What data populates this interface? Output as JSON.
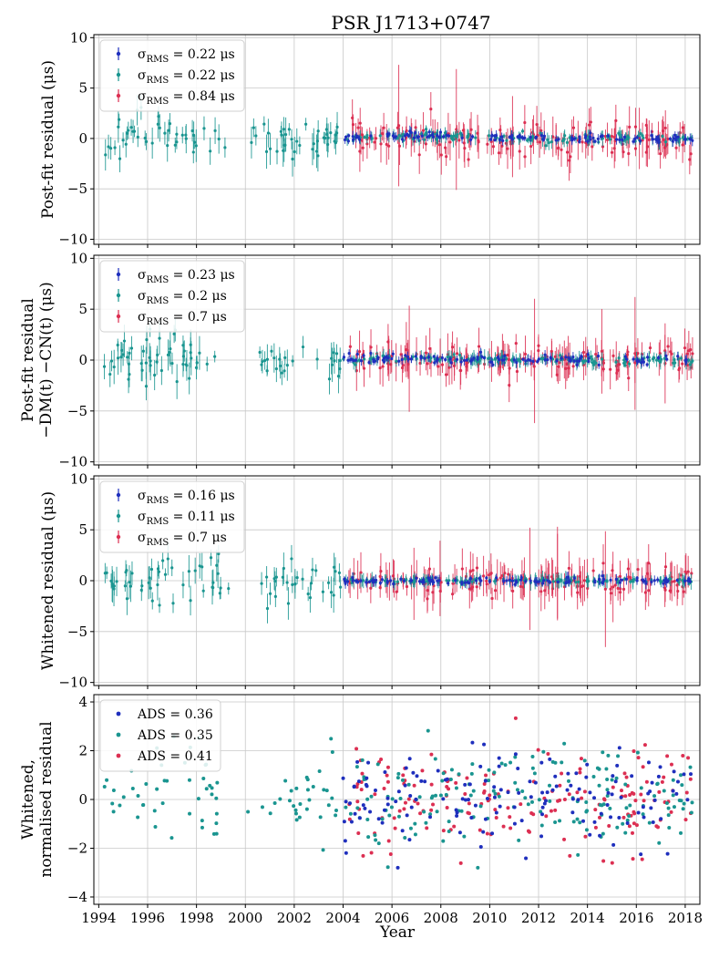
{
  "figure": {
    "title": "PSR J1713+0747",
    "xlabel": "Year"
  },
  "colors": {
    "blue": "#1f2fbd",
    "teal": "#1a9590",
    "red": "#dc2f52"
  },
  "chart_data": [
    {
      "type": "scatter",
      "ylabel_lines": [
        "Post-fit residual (μs)"
      ],
      "xlim": [
        1993.8,
        2018.6
      ],
      "ylim": [
        -10.5,
        10.3
      ],
      "yticks": [
        -10,
        -5,
        0,
        5,
        10
      ],
      "xticks": [
        1994,
        1996,
        1998,
        2000,
        2002,
        2004,
        2006,
        2008,
        2010,
        2012,
        2014,
        2016,
        2018
      ],
      "grid": true,
      "legend_position": "top-left",
      "errorbars": true,
      "series": [
        {
          "name": "σRMS = 0.22 μs",
          "legend_main": "σ",
          "legend_sub": "RMS",
          "legend_rest": " = 0.22 μs",
          "color": "#1f2fbd",
          "spread": 0.22,
          "err": 0.35,
          "x_start": 2004.0,
          "x_end": 2018.3,
          "points": 120,
          "wave": 0.25
        },
        {
          "name": "σRMS = 0.22 μs",
          "legend_main": "σ",
          "legend_sub": "RMS",
          "legend_rest": " = 0.22 μs",
          "color": "#1a9590",
          "spread": 0.22,
          "err": 0.5,
          "x_start": 2004.0,
          "x_end": 2018.3,
          "points": 140,
          "wave": 0.25
        },
        {
          "name": "σRMS = 0.84 μs",
          "legend_main": "σ",
          "legend_sub": "RMS",
          "legend_rest": " = 0.84 μs",
          "color": "#dc2f52",
          "spread": 0.84,
          "err": 1.3,
          "x_start": 2004.2,
          "x_end": 2018.3,
          "points": 150,
          "wave": 0.0
        }
      ],
      "early": {
        "color": "#1a9590",
        "x_start": 1994.2,
        "x_end": 2003.9,
        "points": 95,
        "spread": 0.9,
        "err": 1.1
      }
    },
    {
      "type": "scatter",
      "ylabel_lines": [
        "Post-fit residual",
        "−DM(t) −CN(t) (μs)"
      ],
      "xlim": [
        1993.8,
        2018.6
      ],
      "ylim": [
        -10.3,
        10.3
      ],
      "yticks": [
        -10,
        -5,
        0,
        5,
        10
      ],
      "xticks": [
        1994,
        1996,
        1998,
        2000,
        2002,
        2004,
        2006,
        2008,
        2010,
        2012,
        2014,
        2016,
        2018
      ],
      "grid": true,
      "legend_position": "top-left",
      "errorbars": true,
      "series": [
        {
          "name": "σRMS = 0.23 μs",
          "legend_main": "σ",
          "legend_sub": "RMS",
          "legend_rest": " = 0.23 μs",
          "color": "#1f2fbd",
          "spread": 0.23,
          "err": 0.35,
          "x_start": 2004.0,
          "x_end": 2018.3,
          "points": 120,
          "wave": 0.15
        },
        {
          "name": "σRMS = 0.2 μs",
          "legend_main": "σ",
          "legend_sub": "RMS",
          "legend_rest": " = 0.2 μs",
          "color": "#1a9590",
          "spread": 0.2,
          "err": 0.5,
          "x_start": 2004.0,
          "x_end": 2018.3,
          "points": 140,
          "wave": 0.15
        },
        {
          "name": "σRMS = 0.7 μs",
          "legend_main": "σ",
          "legend_sub": "RMS",
          "legend_rest": " = 0.7 μs",
          "color": "#dc2f52",
          "spread": 0.7,
          "err": 1.3,
          "x_start": 2004.2,
          "x_end": 2018.3,
          "points": 150,
          "wave": 0.0
        }
      ],
      "early": {
        "color": "#1a9590",
        "x_start": 1994.2,
        "x_end": 2003.9,
        "points": 95,
        "spread": 0.9,
        "err": 1.1
      }
    },
    {
      "type": "scatter",
      "ylabel_lines": [
        "Whitened residual (μs)"
      ],
      "xlim": [
        1993.8,
        2018.6
      ],
      "ylim": [
        -10.3,
        10.3
      ],
      "yticks": [
        -10,
        -5,
        0,
        5,
        10
      ],
      "xticks": [
        1994,
        1996,
        1998,
        2000,
        2002,
        2004,
        2006,
        2008,
        2010,
        2012,
        2014,
        2016,
        2018
      ],
      "grid": true,
      "legend_position": "top-left",
      "errorbars": true,
      "series": [
        {
          "name": "σRMS = 0.16 μs",
          "legend_main": "σ",
          "legend_sub": "RMS",
          "legend_rest": " = 0.16 μs",
          "color": "#1f2fbd",
          "spread": 0.16,
          "err": 0.35,
          "x_start": 2004.0,
          "x_end": 2018.3,
          "points": 120,
          "wave": 0.0
        },
        {
          "name": "σRMS = 0.11 μs",
          "legend_main": "σ",
          "legend_sub": "RMS",
          "legend_rest": " = 0.11 μs",
          "color": "#1a9590",
          "spread": 0.11,
          "err": 0.5,
          "x_start": 2004.0,
          "x_end": 2018.3,
          "points": 140,
          "wave": 0.0
        },
        {
          "name": "σRMS = 0.7 μs",
          "legend_main": "σ",
          "legend_sub": "RMS",
          "legend_rest": " = 0.7 μs",
          "color": "#dc2f52",
          "spread": 0.7,
          "err": 1.3,
          "x_start": 2004.2,
          "x_end": 2018.3,
          "points": 150,
          "wave": 0.0
        }
      ],
      "early": {
        "color": "#1a9590",
        "x_start": 1994.2,
        "x_end": 2003.9,
        "points": 95,
        "spread": 0.9,
        "err": 1.1
      }
    },
    {
      "type": "scatter",
      "ylabel_lines": [
        "Whitened,",
        "normalised residual"
      ],
      "xlim": [
        1993.8,
        2018.6
      ],
      "ylim": [
        -4.3,
        4.3
      ],
      "yticks": [
        -4,
        -2,
        0,
        2,
        4
      ],
      "xticks": [
        1994,
        1996,
        1998,
        2000,
        2002,
        2004,
        2006,
        2008,
        2010,
        2012,
        2014,
        2016,
        2018
      ],
      "grid": true,
      "legend_position": "top-left",
      "errorbars": false,
      "series": [
        {
          "name": "ADS = 0.36",
          "legend_main": "ADS",
          "legend_sub": "",
          "legend_rest": " = 0.36",
          "color": "#1f2fbd",
          "spread": 1.0,
          "err": 0,
          "x_start": 2004.0,
          "x_end": 2018.3,
          "points": 150,
          "wave": 0.0
        },
        {
          "name": "ADS = 0.35",
          "legend_main": "ADS",
          "legend_sub": "",
          "legend_rest": " = 0.35",
          "color": "#1a9590",
          "spread": 1.0,
          "err": 0,
          "x_start": 2004.0,
          "x_end": 2018.3,
          "points": 170,
          "wave": 0.0
        },
        {
          "name": "ADS = 0.41",
          "legend_main": "ADS",
          "legend_sub": "",
          "legend_rest": " = 0.41",
          "color": "#dc2f52",
          "spread": 1.0,
          "err": 0,
          "x_start": 2004.2,
          "x_end": 2018.3,
          "points": 170,
          "wave": 0.0
        }
      ],
      "early": {
        "color": "#1a9590",
        "x_start": 1994.2,
        "x_end": 2003.9,
        "points": 95,
        "spread": 1.0,
        "err": 0
      }
    }
  ]
}
